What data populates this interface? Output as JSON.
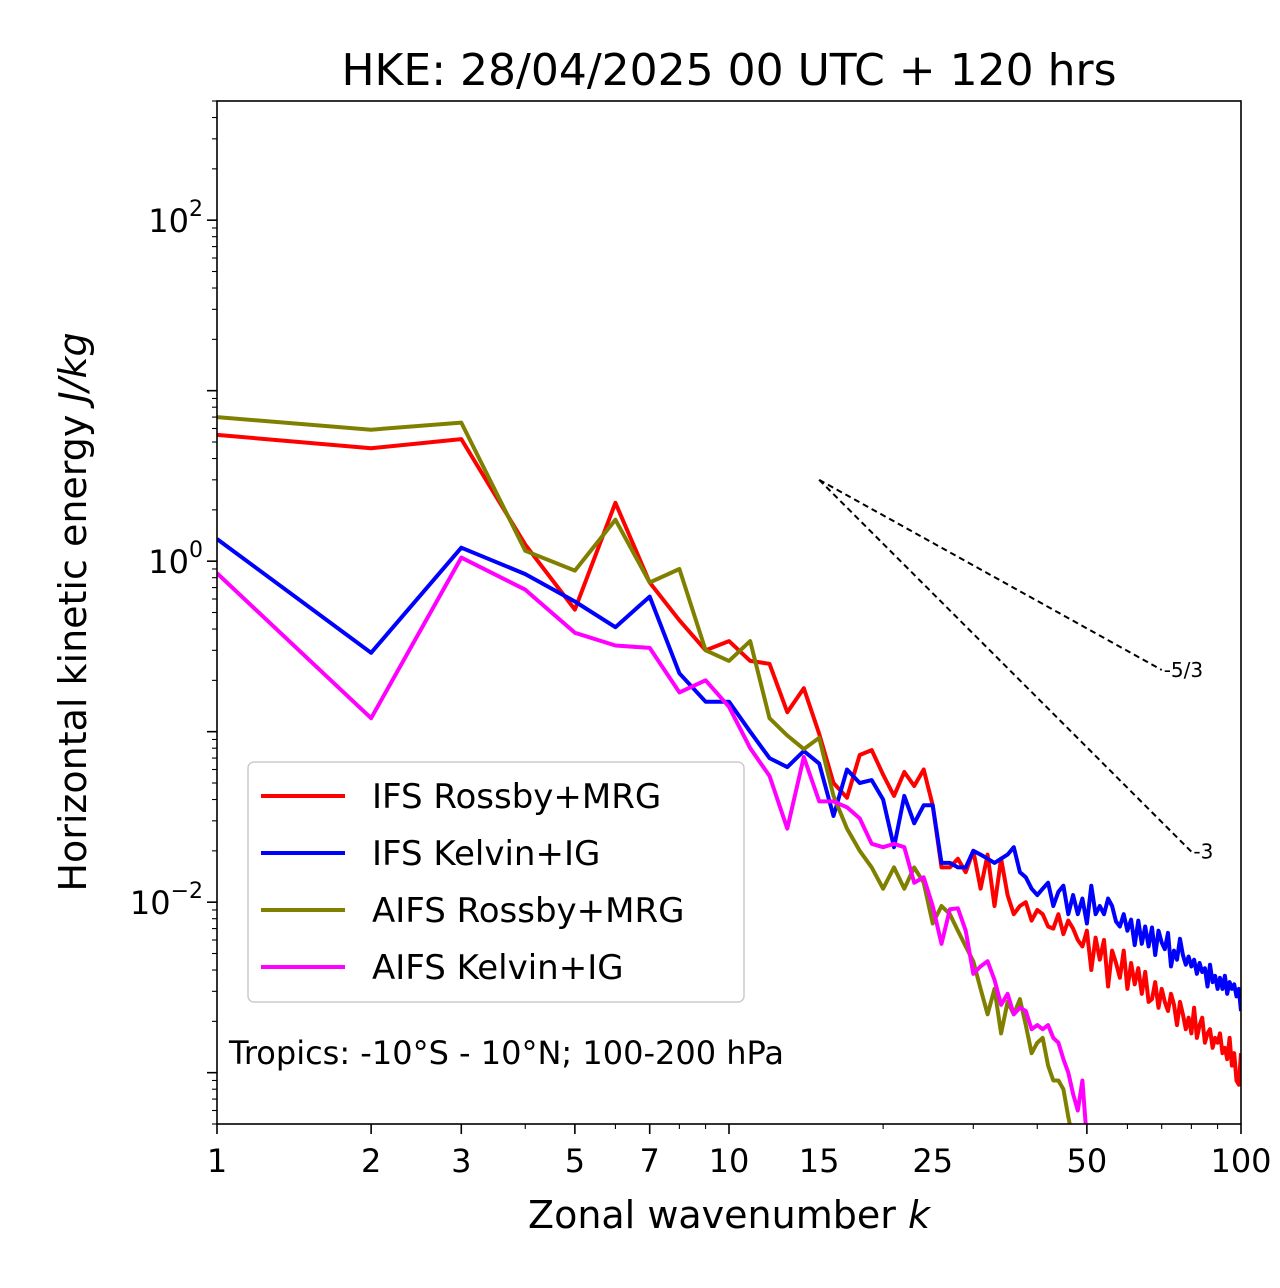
{
  "chart_data": {
    "type": "line",
    "title": "HKE: 28/04/2025 00 UTC + 120 hrs",
    "xlabel": "Zonal wavenumber",
    "xlabel_var": "k",
    "ylabel": "Horizontal kinetic energy",
    "ylabel_unit": "J/kg",
    "xscale": "log",
    "yscale": "log",
    "xlim": [
      1,
      100
    ],
    "ylim": [
      0.0005,
      500
    ],
    "grid": false,
    "legend_position": "lower-left",
    "x_ticks": [
      {
        "value": 1,
        "label": "1"
      },
      {
        "value": 2,
        "label": "2"
      },
      {
        "value": 3,
        "label": "3"
      },
      {
        "value": 5,
        "label": "5"
      },
      {
        "value": 7,
        "label": "7"
      },
      {
        "value": 10,
        "label": "10"
      },
      {
        "value": 15,
        "label": "15"
      },
      {
        "value": 25,
        "label": "25"
      },
      {
        "value": 50,
        "label": "50"
      },
      {
        "value": 100,
        "label": "100"
      }
    ],
    "y_ticks": [
      {
        "value": 0.01,
        "base": "10",
        "exp": "−2"
      },
      {
        "value": 1,
        "base": "10",
        "exp": "0"
      },
      {
        "value": 100,
        "base": "10",
        "exp": "2"
      }
    ],
    "annotation": "Tropics: -10°S - 10°N; 100-200 hPa",
    "reference_lines": [
      {
        "label": "-5/3",
        "slope": -1.6667,
        "x0": 15,
        "y0": 3.0,
        "x1": 70
      },
      {
        "label": "-3",
        "slope": -3,
        "x0": 15,
        "y0": 3.0,
        "x1": 80
      }
    ],
    "series": [
      {
        "name": "IFS Rossby+MRG",
        "color": "#ff0000",
        "x": [
          1,
          2,
          3,
          4,
          5,
          6,
          7,
          8,
          9,
          10,
          11,
          12,
          13,
          14,
          15,
          16,
          17,
          18,
          19,
          20,
          21,
          22,
          23,
          24,
          25,
          26,
          27,
          28,
          29,
          30,
          31,
          32,
          33,
          34,
          35,
          36,
          37,
          38,
          39,
          40,
          41,
          42,
          43,
          44,
          45,
          46,
          47,
          48,
          49,
          50,
          51,
          52,
          53,
          54,
          55,
          56,
          57,
          58,
          59,
          60,
          61,
          62,
          63,
          64,
          65,
          66,
          67,
          68,
          69,
          70,
          71,
          72,
          73,
          74,
          75,
          76,
          77,
          78,
          79,
          80,
          81,
          82,
          83,
          84,
          85,
          86,
          87,
          88,
          89,
          90,
          91,
          92,
          93,
          94,
          95,
          96,
          97,
          98,
          99,
          100
        ],
        "y": [
          5.5,
          4.6,
          5.2,
          1.25,
          0.52,
          2.2,
          0.75,
          0.45,
          0.3,
          0.34,
          0.26,
          0.25,
          0.13,
          0.18,
          0.097,
          0.05,
          0.041,
          0.073,
          0.078,
          0.056,
          0.042,
          0.058,
          0.048,
          0.06,
          0.037,
          0.016,
          0.016,
          0.018,
          0.015,
          0.02,
          0.012,
          0.019,
          0.0095,
          0.018,
          0.011,
          0.0085,
          0.0095,
          0.01,
          0.0078,
          0.009,
          0.0085,
          0.0072,
          0.007,
          0.0085,
          0.0065,
          0.0078,
          0.007,
          0.006,
          0.0055,
          0.0068,
          0.004,
          0.0062,
          0.0046,
          0.006,
          0.0032,
          0.0052,
          0.0044,
          0.0036,
          0.0052,
          0.0031,
          0.0044,
          0.0033,
          0.0041,
          0.0029,
          0.0039,
          0.0026,
          0.0027,
          0.0034,
          0.0024,
          0.0031,
          0.0026,
          0.0023,
          0.0029,
          0.0025,
          0.0019,
          0.0026,
          0.0022,
          0.0018,
          0.0021,
          0.0017,
          0.0024,
          0.0016,
          0.0019,
          0.0021,
          0.0015,
          0.0017,
          0.0018,
          0.0014,
          0.0016,
          0.0015,
          0.0017,
          0.0013,
          0.0014,
          0.0012,
          0.0016,
          0.0011,
          0.0013,
          0.0009,
          0.00085,
          0.0013
        ]
      },
      {
        "name": "IFS Kelvin+IG",
        "color": "#0000ff",
        "x": [
          1,
          2,
          3,
          4,
          5,
          6,
          7,
          8,
          9,
          10,
          11,
          12,
          13,
          14,
          15,
          16,
          17,
          18,
          19,
          20,
          21,
          22,
          23,
          24,
          25,
          26,
          27,
          28,
          29,
          30,
          31,
          32,
          33,
          34,
          35,
          36,
          37,
          38,
          39,
          40,
          41,
          42,
          43,
          44,
          45,
          46,
          47,
          48,
          49,
          50,
          51,
          52,
          53,
          54,
          55,
          56,
          57,
          58,
          59,
          60,
          61,
          62,
          63,
          64,
          65,
          66,
          67,
          68,
          69,
          70,
          71,
          72,
          73,
          74,
          75,
          76,
          77,
          78,
          79,
          80,
          81,
          82,
          83,
          84,
          85,
          86,
          87,
          88,
          89,
          90,
          91,
          92,
          93,
          94,
          95,
          96,
          97,
          98,
          99,
          100
        ],
        "y": [
          1.35,
          0.29,
          1.2,
          0.84,
          0.58,
          0.41,
          0.62,
          0.22,
          0.15,
          0.15,
          0.1,
          0.07,
          0.062,
          0.077,
          0.065,
          0.032,
          0.06,
          0.05,
          0.052,
          0.04,
          0.021,
          0.042,
          0.029,
          0.037,
          0.037,
          0.017,
          0.017,
          0.016,
          0.016,
          0.02,
          0.019,
          0.018,
          0.017,
          0.018,
          0.019,
          0.021,
          0.015,
          0.014,
          0.012,
          0.011,
          0.012,
          0.013,
          0.0095,
          0.0115,
          0.0125,
          0.0085,
          0.011,
          0.0085,
          0.0105,
          0.0075,
          0.0125,
          0.0085,
          0.0095,
          0.0085,
          0.0105,
          0.0095,
          0.0077,
          0.0072,
          0.0085,
          0.0068,
          0.0079,
          0.0056,
          0.0078,
          0.0057,
          0.0072,
          0.0055,
          0.0071,
          0.0049,
          0.0068,
          0.0058,
          0.0053,
          0.0066,
          0.0042,
          0.0052,
          0.0046,
          0.0061,
          0.0049,
          0.0043,
          0.0048,
          0.0042,
          0.0046,
          0.0038,
          0.0044,
          0.0039,
          0.0041,
          0.0032,
          0.0043,
          0.0034,
          0.0037,
          0.0031,
          0.0036,
          0.0031,
          0.0037,
          0.0029,
          0.0034,
          0.0031,
          0.0033,
          0.0028,
          0.0031,
          0.0023
        ]
      },
      {
        "name": "AIFS Rossby+MRG",
        "color": "#808000",
        "x": [
          1,
          2,
          3,
          4,
          5,
          6,
          7,
          8,
          9,
          10,
          11,
          12,
          13,
          14,
          15,
          16,
          17,
          18,
          19,
          20,
          21,
          22,
          23,
          24,
          25,
          26,
          27,
          28,
          29,
          30,
          31,
          32,
          33,
          34,
          35,
          36,
          37,
          38,
          39,
          40,
          41,
          42,
          43,
          44,
          45,
          46,
          47
        ],
        "y": [
          7.0,
          5.9,
          6.5,
          1.15,
          0.88,
          1.75,
          0.75,
          0.9,
          0.3,
          0.26,
          0.34,
          0.12,
          0.095,
          0.079,
          0.092,
          0.042,
          0.027,
          0.02,
          0.016,
          0.012,
          0.016,
          0.012,
          0.016,
          0.013,
          0.0075,
          0.0095,
          0.0085,
          0.0068,
          0.0055,
          0.0045,
          0.0031,
          0.0022,
          0.0031,
          0.0017,
          0.0026,
          0.0022,
          0.0027,
          0.0019,
          0.0013,
          0.0015,
          0.0016,
          0.0011,
          0.0009,
          0.0009,
          0.0008,
          0.00055,
          0.0004
        ]
      },
      {
        "name": "AIFS Kelvin+IG",
        "color": "#ff00ff",
        "x": [
          1,
          2,
          3,
          4,
          5,
          6,
          7,
          8,
          9,
          10,
          11,
          12,
          13,
          14,
          15,
          16,
          17,
          18,
          19,
          20,
          21,
          22,
          23,
          24,
          25,
          26,
          27,
          28,
          29,
          30,
          31,
          32,
          33,
          34,
          35,
          36,
          37,
          38,
          39,
          40,
          41,
          42,
          43,
          44,
          45,
          46,
          47,
          48,
          49,
          50,
          51,
          52,
          53,
          54,
          55
        ],
        "y": [
          0.85,
          0.12,
          1.05,
          0.68,
          0.38,
          0.32,
          0.31,
          0.17,
          0.2,
          0.14,
          0.08,
          0.055,
          0.027,
          0.071,
          0.039,
          0.039,
          0.036,
          0.031,
          0.022,
          0.021,
          0.022,
          0.021,
          0.013,
          0.014,
          0.0095,
          0.0057,
          0.0091,
          0.0092,
          0.0068,
          0.0038,
          0.0042,
          0.0045,
          0.0035,
          0.0025,
          0.0029,
          0.0022,
          0.0024,
          0.0023,
          0.0018,
          0.0019,
          0.0018,
          0.0019,
          0.0016,
          0.0015,
          0.0012,
          0.001,
          0.00075,
          0.0006,
          0.0009,
          0.0004,
          0.0003,
          0.00042,
          0.00028,
          0.00045,
          0.00035
        ]
      }
    ]
  }
}
